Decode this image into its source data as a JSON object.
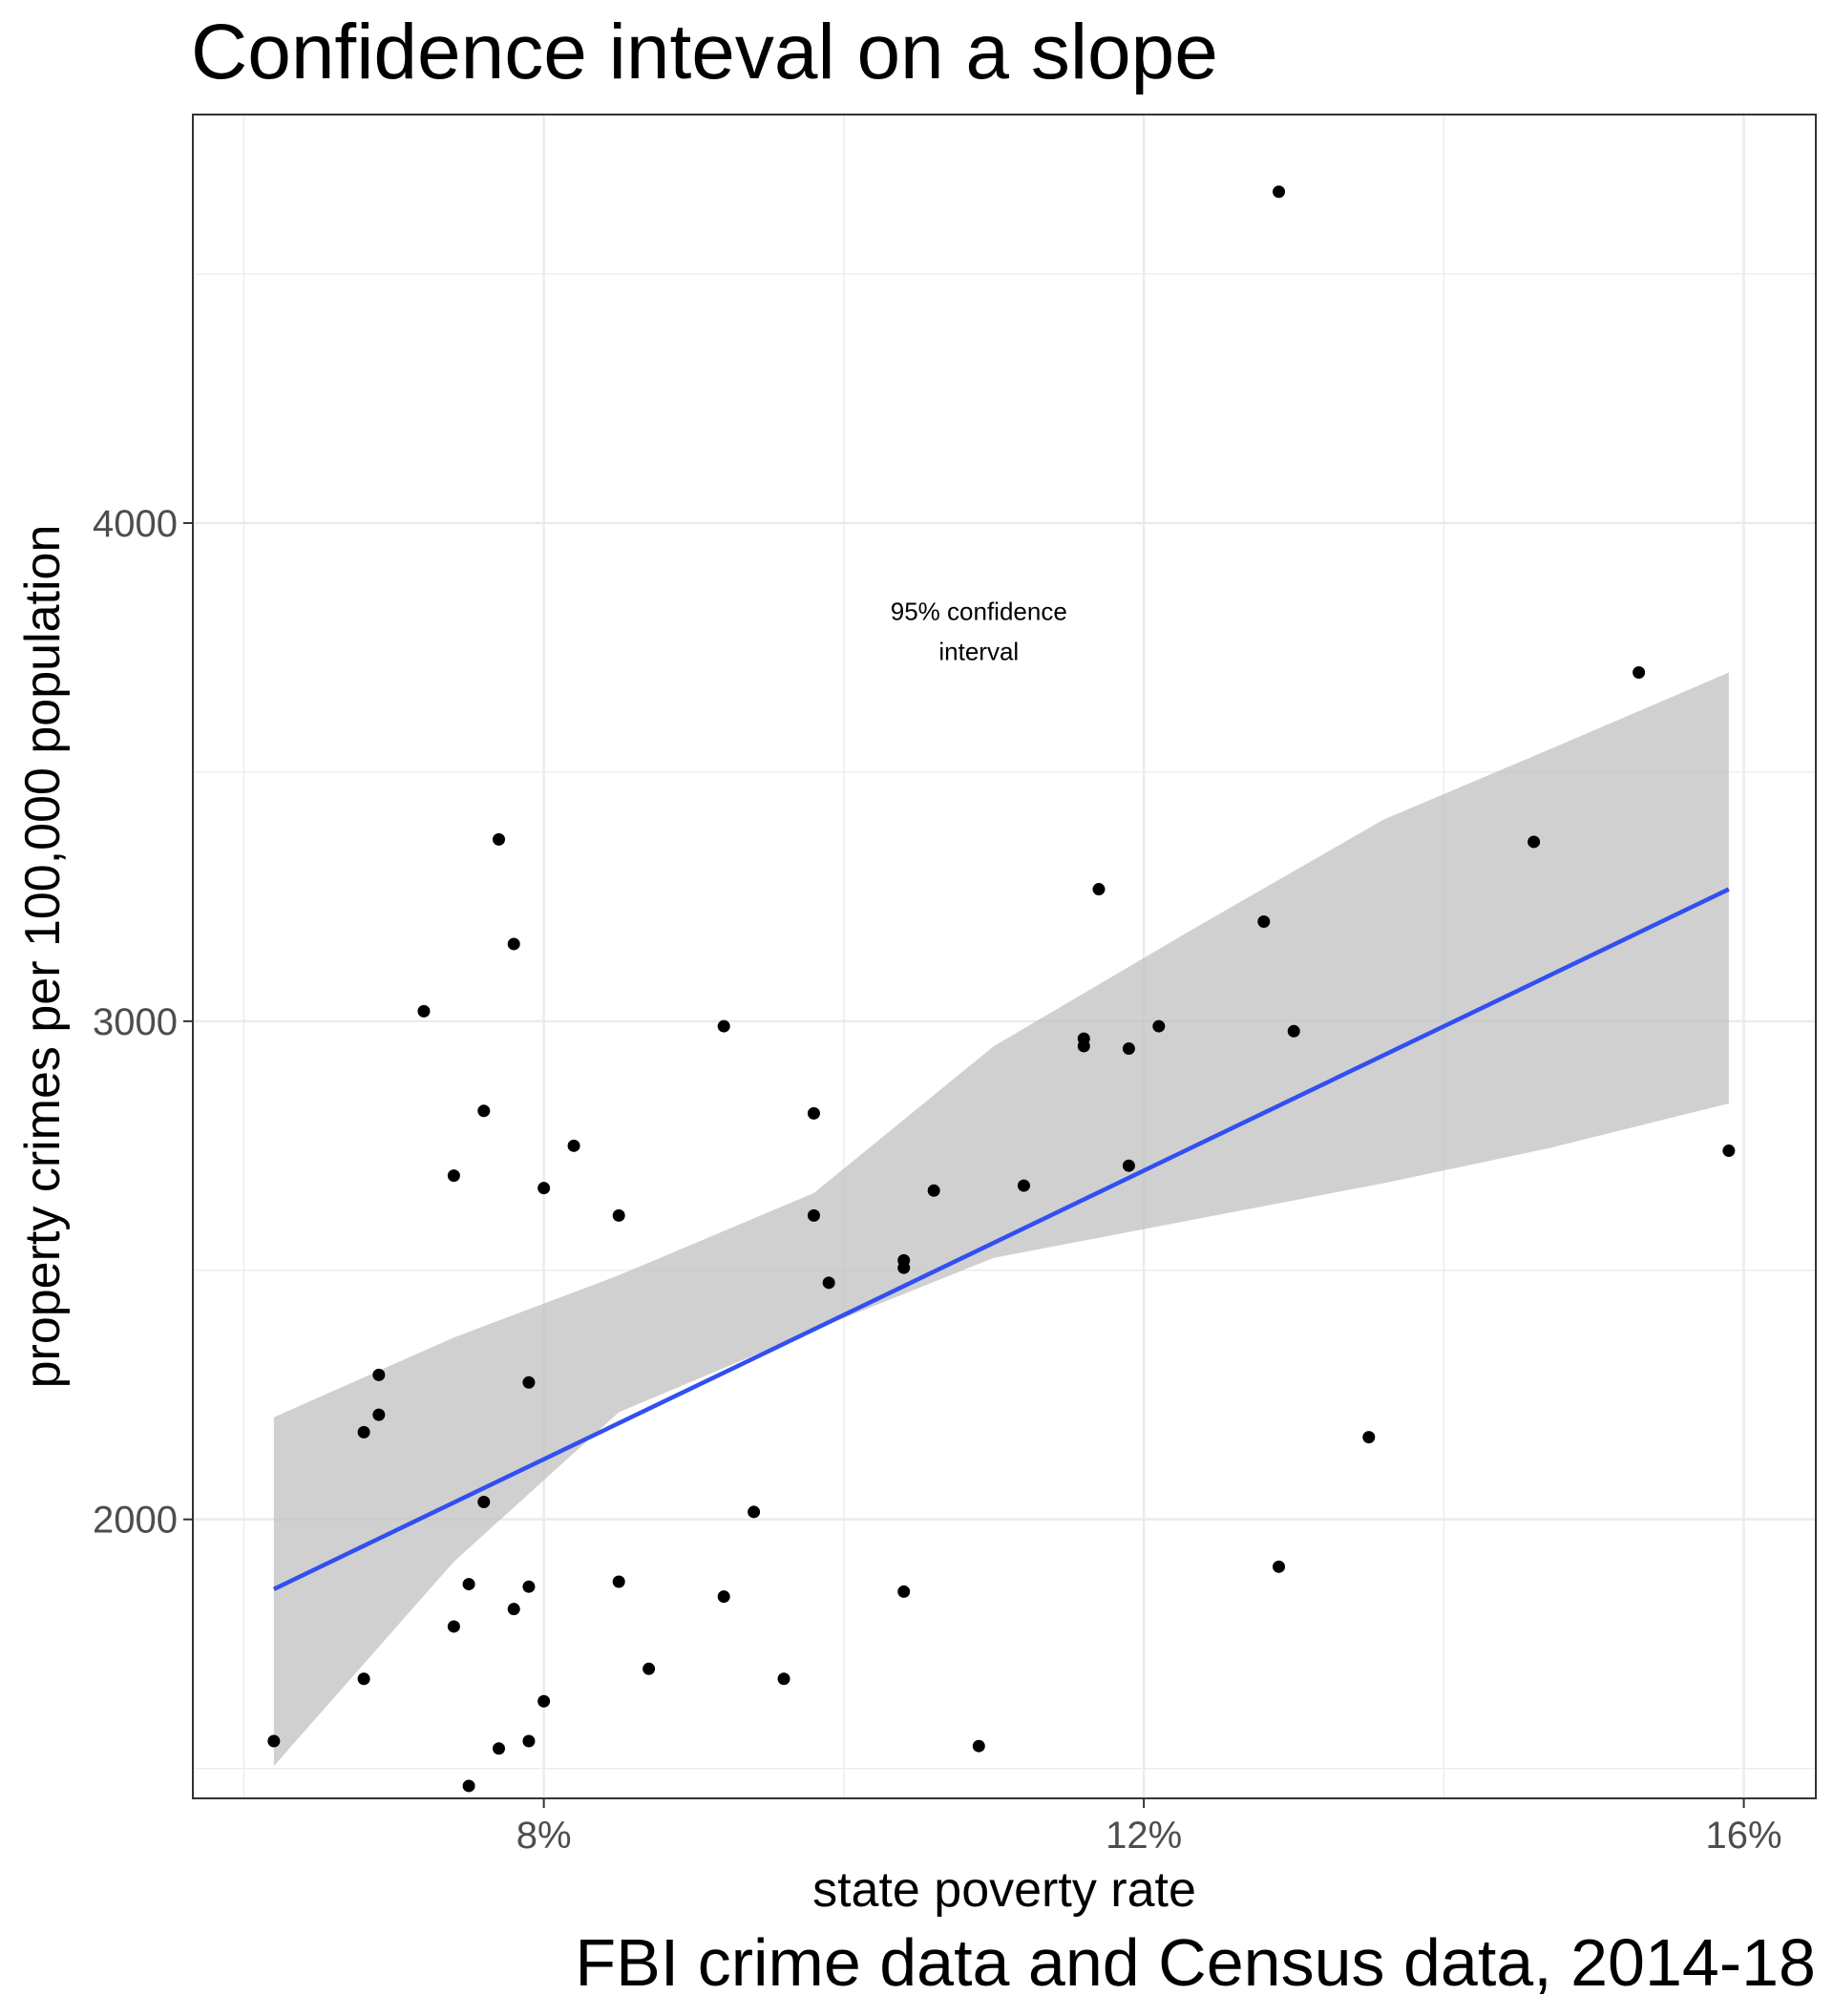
{
  "chart_data": {
    "type": "scatter",
    "title": "Confidence inteval on a slope",
    "caption": "FBI crime data and Census data, 2014-18",
    "xlabel": "state poverty rate",
    "ylabel": "property crimes per 100,000 population",
    "x_unit": "percent",
    "xlim": [
      5.66,
      16.48
    ],
    "ylim": [
      1440,
      4820
    ],
    "x_ticks": [
      8,
      12,
      16
    ],
    "x_tick_labels": [
      "8%",
      "12%",
      "16%"
    ],
    "y_ticks": [
      2000,
      3000,
      4000
    ],
    "y_tick_labels": [
      "2000",
      "3000",
      "4000"
    ],
    "grid": true,
    "annotation": {
      "lines": [
        "95% confidence",
        "interval"
      ],
      "x": 10.9,
      "y": 3765
    },
    "fit_line": {
      "color": "#3050f0",
      "x0": 6.2,
      "y0": 1860,
      "x1": 15.9,
      "y1": 3265
    },
    "confidence_band": {
      "color": "#bebebe",
      "x": [
        6.2,
        7.4,
        8.5,
        9.8,
        11.0,
        12.3,
        13.6,
        14.7,
        15.9
      ],
      "upper": [
        2205,
        2365,
        2490,
        2655,
        2950,
        3180,
        3405,
        3545,
        3700
      ],
      "lower": [
        1505,
        1915,
        2215,
        2380,
        2525,
        2600,
        2675,
        2745,
        2835
      ]
    },
    "points_color": "#000000",
    "points": [
      [
        6.2,
        1555
      ],
      [
        6.8,
        1680
      ],
      [
        6.8,
        2175
      ],
      [
        6.9,
        2290
      ],
      [
        6.9,
        2210
      ],
      [
        7.2,
        3020
      ],
      [
        7.4,
        1785
      ],
      [
        7.4,
        2690
      ],
      [
        7.5,
        1870
      ],
      [
        7.5,
        1465
      ],
      [
        7.6,
        2820
      ],
      [
        7.6,
        2035
      ],
      [
        7.7,
        3365
      ],
      [
        7.7,
        1540
      ],
      [
        7.8,
        3155
      ],
      [
        7.8,
        1820
      ],
      [
        7.9,
        1555
      ],
      [
        7.9,
        2275
      ],
      [
        7.9,
        1865
      ],
      [
        8.0,
        1635
      ],
      [
        8.0,
        2665
      ],
      [
        8.2,
        2750
      ],
      [
        8.5,
        2610
      ],
      [
        8.5,
        1875
      ],
      [
        8.7,
        1700
      ],
      [
        9.2,
        2990
      ],
      [
        9.2,
        1845
      ],
      [
        9.4,
        2015
      ],
      [
        9.6,
        1680
      ],
      [
        9.8,
        2815
      ],
      [
        9.8,
        2610
      ],
      [
        9.9,
        2475
      ],
      [
        10.4,
        1855
      ],
      [
        10.4,
        2505
      ],
      [
        10.4,
        2520
      ],
      [
        10.6,
        2660
      ],
      [
        10.9,
        1545
      ],
      [
        11.2,
        2670
      ],
      [
        11.6,
        2965
      ],
      [
        11.6,
        2950
      ],
      [
        11.7,
        3265
      ],
      [
        11.9,
        2945
      ],
      [
        11.9,
        2710
      ],
      [
        12.1,
        2990
      ],
      [
        12.8,
        3200
      ],
      [
        12.9,
        4665
      ],
      [
        12.9,
        1905
      ],
      [
        13.0,
        2980
      ],
      [
        13.5,
        2165
      ],
      [
        14.6,
        3360
      ],
      [
        15.3,
        3700
      ],
      [
        15.9,
        2740
      ]
    ]
  }
}
